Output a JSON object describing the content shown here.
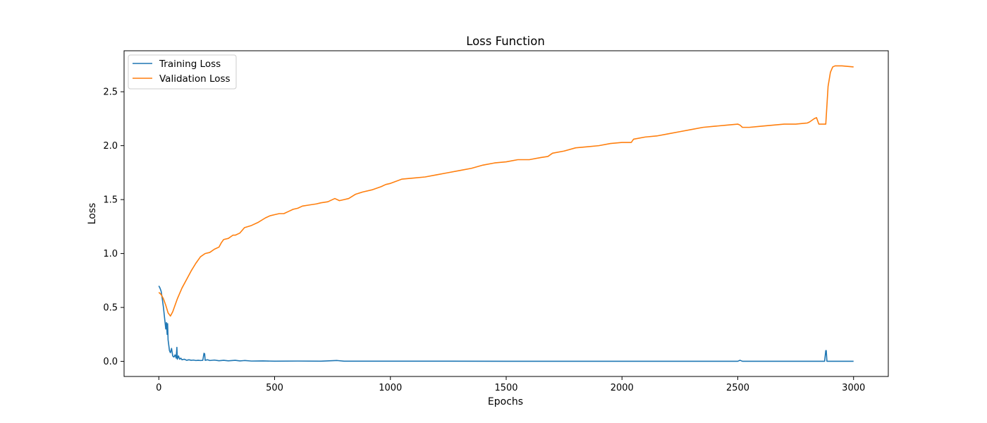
{
  "chart_data": {
    "type": "line",
    "title": "Loss Function",
    "xlabel": "Epochs",
    "ylabel": "Loss",
    "xlim": [
      -150,
      3150
    ],
    "ylim": [
      -0.14,
      2.88
    ],
    "xticks": [
      0,
      500,
      1000,
      1500,
      2000,
      2500,
      3000
    ],
    "yticks": [
      0.0,
      0.5,
      1.0,
      1.5,
      2.0,
      2.5
    ],
    "ytick_labels": [
      "0.0",
      "0.5",
      "1.0",
      "1.5",
      "2.0",
      "2.5"
    ],
    "grid": false,
    "legend_position": "top-left",
    "series": [
      {
        "name": "Training Loss",
        "color": "#1f77b4",
        "x": [
          0,
          5,
          10,
          15,
          20,
          25,
          30,
          33,
          36,
          38,
          40,
          43,
          46,
          50,
          55,
          60,
          65,
          70,
          75,
          78,
          80,
          85,
          90,
          95,
          100,
          110,
          120,
          130,
          140,
          150,
          160,
          170,
          180,
          190,
          195,
          198,
          200,
          210,
          220,
          240,
          260,
          280,
          300,
          330,
          350,
          370,
          400,
          450,
          500,
          600,
          700,
          770,
          800,
          1000,
          1500,
          2000,
          2500,
          2510,
          2520,
          2800,
          2875,
          2880,
          2882,
          2885,
          2890,
          3000
        ],
        "y": [
          0.7,
          0.68,
          0.65,
          0.58,
          0.5,
          0.4,
          0.3,
          0.36,
          0.25,
          0.35,
          0.2,
          0.15,
          0.1,
          0.08,
          0.12,
          0.05,
          0.04,
          0.06,
          0.03,
          0.13,
          0.02,
          0.05,
          0.02,
          0.03,
          0.015,
          0.02,
          0.01,
          0.015,
          0.01,
          0.012,
          0.008,
          0.01,
          0.008,
          0.01,
          0.075,
          0.07,
          0.01,
          0.015,
          0.008,
          0.012,
          0.006,
          0.01,
          0.005,
          0.01,
          0.004,
          0.008,
          0.003,
          0.004,
          0.002,
          0.003,
          0.002,
          0.008,
          0.002,
          0.002,
          0.001,
          0.001,
          0.001,
          0.01,
          0.001,
          0.001,
          0.001,
          0.1,
          0.1,
          0.001,
          0.001,
          0.001
        ]
      },
      {
        "name": "Validation Loss",
        "color": "#ff7f0e",
        "x": [
          0,
          10,
          20,
          30,
          40,
          50,
          60,
          70,
          80,
          100,
          120,
          140,
          160,
          180,
          200,
          220,
          240,
          260,
          270,
          280,
          300,
          320,
          330,
          350,
          370,
          400,
          430,
          460,
          480,
          500,
          520,
          540,
          560,
          580,
          600,
          620,
          650,
          680,
          700,
          730,
          760,
          780,
          800,
          820,
          850,
          880,
          920,
          960,
          980,
          1000,
          1050,
          1100,
          1150,
          1200,
          1250,
          1300,
          1350,
          1400,
          1450,
          1500,
          1550,
          1600,
          1650,
          1680,
          1700,
          1750,
          1800,
          1850,
          1900,
          1950,
          2000,
          2040,
          2050,
          2100,
          2150,
          2200,
          2250,
          2300,
          2350,
          2400,
          2450,
          2500,
          2510,
          2520,
          2550,
          2600,
          2650,
          2700,
          2750,
          2800,
          2810,
          2830,
          2840,
          2850,
          2880,
          2890,
          2900,
          2910,
          2920,
          2950,
          3000
        ],
        "y": [
          0.64,
          0.62,
          0.58,
          0.52,
          0.45,
          0.42,
          0.46,
          0.52,
          0.58,
          0.68,
          0.76,
          0.84,
          0.91,
          0.97,
          1.0,
          1.01,
          1.04,
          1.06,
          1.1,
          1.13,
          1.14,
          1.17,
          1.17,
          1.19,
          1.24,
          1.26,
          1.29,
          1.33,
          1.35,
          1.36,
          1.37,
          1.37,
          1.39,
          1.41,
          1.42,
          1.44,
          1.45,
          1.46,
          1.47,
          1.48,
          1.51,
          1.49,
          1.5,
          1.51,
          1.55,
          1.57,
          1.59,
          1.62,
          1.64,
          1.65,
          1.69,
          1.7,
          1.71,
          1.73,
          1.75,
          1.77,
          1.79,
          1.82,
          1.84,
          1.85,
          1.87,
          1.87,
          1.89,
          1.9,
          1.93,
          1.95,
          1.98,
          1.99,
          2.0,
          2.02,
          2.03,
          2.03,
          2.06,
          2.08,
          2.09,
          2.11,
          2.13,
          2.15,
          2.17,
          2.18,
          2.19,
          2.2,
          2.19,
          2.17,
          2.17,
          2.18,
          2.19,
          2.2,
          2.2,
          2.21,
          2.22,
          2.25,
          2.26,
          2.2,
          2.2,
          2.55,
          2.68,
          2.73,
          2.74,
          2.74,
          2.73
        ]
      }
    ]
  }
}
